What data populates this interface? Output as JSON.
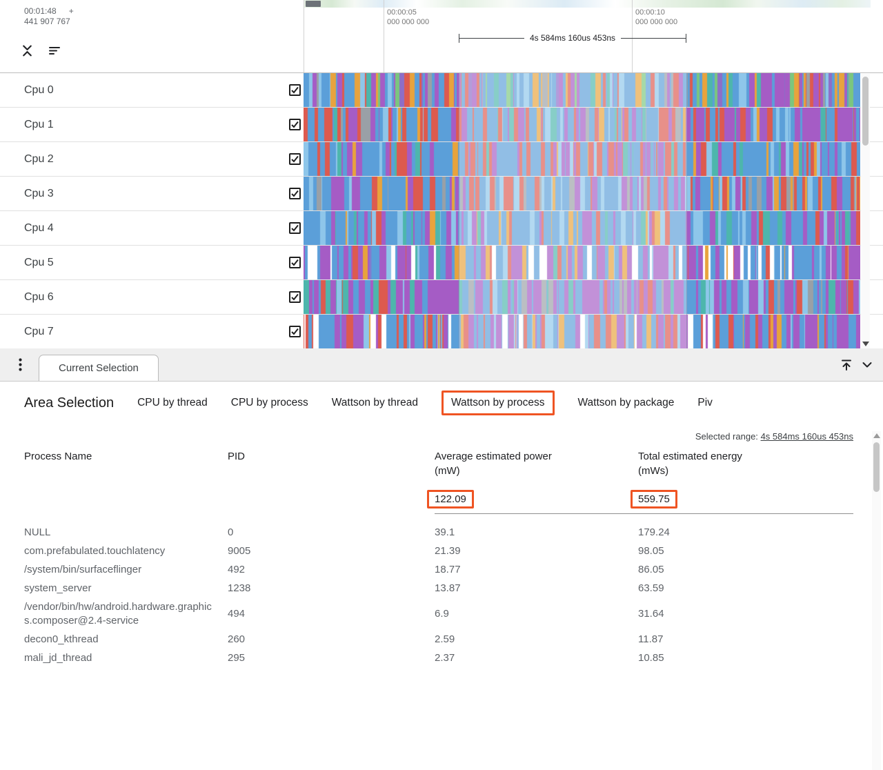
{
  "colors": {
    "highlight": "#ef5423",
    "palette": {
      "blue": "#5b9fd9",
      "lightblue": "#8ec6ea",
      "purple": "#a55cc5",
      "violet": "#8d6ec8",
      "red": "#dd5a4f",
      "orange": "#e8a33d",
      "teal": "#4db6ac",
      "green": "#7bc67e",
      "gray": "#9aa0a6",
      "white": "#ffffff"
    }
  },
  "timeline": {
    "hover_time": "00:01:48",
    "hover_marker": "+",
    "hover_ts": "441 907 767",
    "ticks": [
      {
        "time": "00:00:05",
        "frac": "000 000 000"
      },
      {
        "time": "00:00:10",
        "frac": "000 000 000"
      }
    ],
    "selection_duration": "4s 584ms 160us 453ns"
  },
  "tracks": [
    {
      "label": "Cpu 0",
      "checked": true,
      "seed": 101,
      "weights": [
        [
          "blue",
          0.28
        ],
        [
          "lightblue",
          0.08
        ],
        [
          "purple",
          0.18
        ],
        [
          "orange",
          0.13
        ],
        [
          "red",
          0.12
        ],
        [
          "teal",
          0.06
        ],
        [
          "violet",
          0.06
        ],
        [
          "gray",
          0.05
        ],
        [
          "green",
          0.04
        ]
      ]
    },
    {
      "label": "Cpu 1",
      "checked": true,
      "seed": 102,
      "weights": [
        [
          "red",
          0.27
        ],
        [
          "blue",
          0.3
        ],
        [
          "lightblue",
          0.08
        ],
        [
          "purple",
          0.21
        ],
        [
          "orange",
          0.06
        ],
        [
          "teal",
          0.05
        ],
        [
          "gray",
          0.03
        ]
      ]
    },
    {
      "label": "Cpu 2",
      "checked": true,
      "seed": 103,
      "weights": [
        [
          "blue",
          0.34
        ],
        [
          "lightblue",
          0.08
        ],
        [
          "red",
          0.26
        ],
        [
          "purple",
          0.18
        ],
        [
          "orange",
          0.08
        ],
        [
          "teal",
          0.06
        ]
      ]
    },
    {
      "label": "Cpu 3",
      "checked": true,
      "seed": 104,
      "weights": [
        [
          "blue",
          0.42
        ],
        [
          "lightblue",
          0.1
        ],
        [
          "purple",
          0.16
        ],
        [
          "red",
          0.14
        ],
        [
          "gray",
          0.1
        ],
        [
          "orange",
          0.08
        ]
      ]
    },
    {
      "label": "Cpu 4",
      "checked": true,
      "seed": 105,
      "weights": [
        [
          "blue",
          0.46
        ],
        [
          "lightblue",
          0.12
        ],
        [
          "purple",
          0.22
        ],
        [
          "red",
          0.08
        ],
        [
          "orange",
          0.06
        ],
        [
          "teal",
          0.06
        ]
      ]
    },
    {
      "label": "Cpu 5",
      "checked": true,
      "seed": 106,
      "weights": [
        [
          "purple",
          0.33
        ],
        [
          "blue",
          0.25
        ],
        [
          "lightblue",
          0.06
        ],
        [
          "white",
          0.13
        ],
        [
          "orange",
          0.1
        ],
        [
          "red",
          0.1
        ],
        [
          "teal",
          0.03
        ]
      ]
    },
    {
      "label": "Cpu 6",
      "checked": true,
      "seed": 107,
      "weights": [
        [
          "purple",
          0.41
        ],
        [
          "blue",
          0.27
        ],
        [
          "lightblue",
          0.06
        ],
        [
          "gray",
          0.1
        ],
        [
          "red",
          0.08
        ],
        [
          "teal",
          0.08
        ]
      ]
    },
    {
      "label": "Cpu 7",
      "checked": true,
      "seed": 108,
      "weights": [
        [
          "blue",
          0.29
        ],
        [
          "purple",
          0.27
        ],
        [
          "white",
          0.09
        ],
        [
          "red",
          0.16
        ],
        [
          "orange",
          0.11
        ],
        [
          "lightblue",
          0.08
        ]
      ]
    }
  ],
  "tabbar": {
    "current_tab": "Current Selection"
  },
  "panel": {
    "title": "Area Selection",
    "views": [
      "CPU by thread",
      "CPU by process",
      "Wattson by thread",
      "Wattson by process",
      "Wattson by package",
      "Piv"
    ],
    "active_view": "Wattson by process",
    "selected_range_label": "Selected range:",
    "selected_range_value": "4s 584ms 160us 453ns"
  },
  "table": {
    "col_name": "Process Name",
    "col_pid": "PID",
    "col_power": "Average estimated power (mW)",
    "col_energy": "Total estimated energy (mWs)",
    "summary_power": "122.09",
    "summary_energy": "559.75",
    "rows": [
      {
        "name": "NULL",
        "pid": "0",
        "power": "39.1",
        "energy": "179.24"
      },
      {
        "name": "com.prefabulated.touchlatency",
        "pid": "9005",
        "power": "21.39",
        "energy": "98.05"
      },
      {
        "name": "/system/bin/surfaceflinger",
        "pid": "492",
        "power": "18.77",
        "energy": "86.05"
      },
      {
        "name": "system_server",
        "pid": "1238",
        "power": "13.87",
        "energy": "63.59"
      },
      {
        "name": "/vendor/bin/hw/android.hardware.graphics.composer@2.4-service",
        "pid": "494",
        "power": "6.9",
        "energy": "31.64"
      },
      {
        "name": "decon0_kthread",
        "pid": "260",
        "power": "2.59",
        "energy": "11.87"
      },
      {
        "name": "mali_jd_thread",
        "pid": "295",
        "power": "2.37",
        "energy": "10.85"
      }
    ]
  }
}
